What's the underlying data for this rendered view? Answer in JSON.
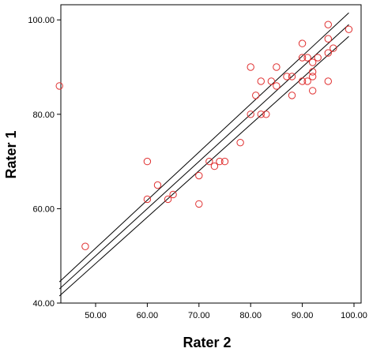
{
  "chart_data": {
    "type": "scatter",
    "xlabel": "Rater 2",
    "ylabel": "Rater 1",
    "xlim": [
      42,
      100
    ],
    "ylim": [
      40,
      102
    ],
    "x_ticks": [
      50,
      60,
      70,
      80,
      90,
      100
    ],
    "x_tick_labels": [
      "50.00",
      "60.00",
      "70.00",
      "80.00",
      "90.00",
      "100.00"
    ],
    "y_ticks": [
      40,
      60,
      80,
      100
    ],
    "y_tick_labels": [
      "40.00",
      "60.00",
      "80.00",
      "100.00"
    ],
    "grid": false,
    "colors": {
      "points": "#e03030",
      "lines": "#000000",
      "axes": "#000000"
    },
    "points": [
      [
        43,
        86
      ],
      [
        48,
        52
      ],
      [
        60,
        62
      ],
      [
        60,
        70
      ],
      [
        62,
        65
      ],
      [
        64,
        62
      ],
      [
        65,
        63
      ],
      [
        70,
        61
      ],
      [
        70,
        67
      ],
      [
        72,
        70
      ],
      [
        73,
        69
      ],
      [
        74,
        70
      ],
      [
        75,
        70
      ],
      [
        78,
        74
      ],
      [
        80,
        80
      ],
      [
        80,
        90
      ],
      [
        81,
        84
      ],
      [
        82,
        80
      ],
      [
        82,
        87
      ],
      [
        83,
        80
      ],
      [
        84,
        87
      ],
      [
        85,
        86
      ],
      [
        85,
        90
      ],
      [
        87,
        88
      ],
      [
        88,
        84
      ],
      [
        88,
        88
      ],
      [
        90,
        87
      ],
      [
        90,
        92
      ],
      [
        90,
        95
      ],
      [
        91,
        87
      ],
      [
        91,
        92
      ],
      [
        92,
        85
      ],
      [
        92,
        88
      ],
      [
        92,
        89
      ],
      [
        92,
        91
      ],
      [
        93,
        92
      ],
      [
        95,
        87
      ],
      [
        95,
        93
      ],
      [
        95,
        96
      ],
      [
        95,
        99
      ],
      [
        96,
        94
      ],
      [
        99,
        98
      ]
    ],
    "fit_lines": [
      {
        "name": "upper",
        "x": [
          43,
          99
        ],
        "y": [
          44.5,
          101.5
        ]
      },
      {
        "name": "fit",
        "x": [
          43,
          99
        ],
        "y": [
          43.0,
          99.0
        ]
      },
      {
        "name": "lower",
        "x": [
          43,
          99
        ],
        "y": [
          41.5,
          96.5
        ]
      }
    ]
  }
}
